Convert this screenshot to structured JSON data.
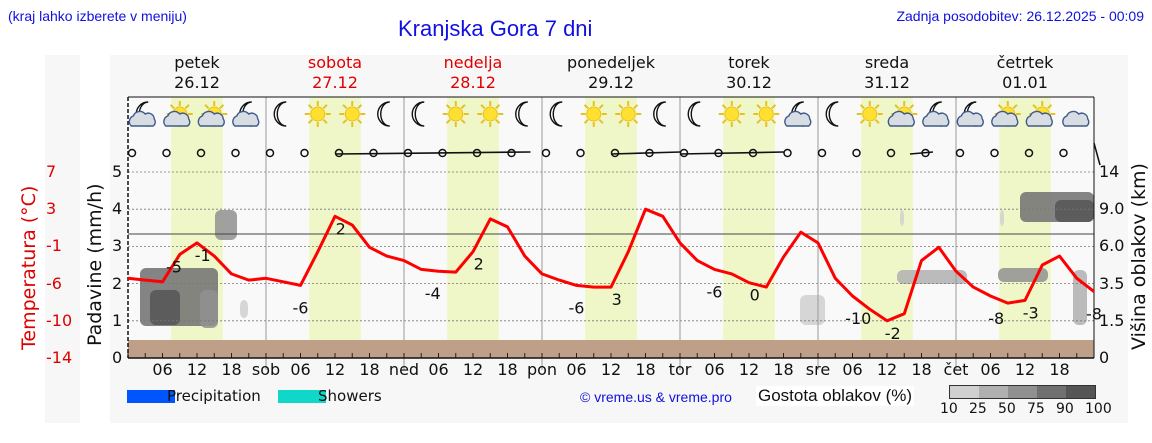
{
  "header": {
    "hint": "(kraj lahko izberete v meniju)",
    "title": "Kranjska Gora 7 dni",
    "updated": "Zadnja posodobitev: 26.12.2025 - 00:09"
  },
  "days": [
    {
      "name": "petek",
      "date": "26.12",
      "weekend": false
    },
    {
      "name": "sobota",
      "date": "27.12",
      "weekend": true
    },
    {
      "name": "nedelja",
      "date": "28.12",
      "weekend": true
    },
    {
      "name": "ponedeljek",
      "date": "29.12",
      "weekend": false
    },
    {
      "name": "torek",
      "date": "30.12",
      "weekend": false
    },
    {
      "name": "sreda",
      "date": "31.12",
      "weekend": false
    },
    {
      "name": "četrtek",
      "date": "01.01",
      "weekend": false
    }
  ],
  "axes": {
    "left_temp_label": "Temperatura (°C)",
    "left_temp_ticks": [
      "7",
      "3",
      "-1",
      "-6",
      "-10",
      "-14"
    ],
    "left_precip_label": "Padavine (mm/h)",
    "left_precip_ticks": [
      "5",
      "4",
      "3",
      "2",
      "1",
      "0"
    ],
    "right_label": "Višina oblakov (km)",
    "right_ticks": [
      "14",
      "9.0",
      "6.0",
      "3.5",
      "1.5",
      "0"
    ],
    "x_ticks": [
      "06",
      "12",
      "18",
      "sob",
      "06",
      "12",
      "18",
      "ned",
      "06",
      "12",
      "18",
      "pon",
      "06",
      "12",
      "18",
      "tor",
      "06",
      "12",
      "18",
      "sre",
      "06",
      "12",
      "18",
      "čet",
      "06",
      "12",
      "18"
    ]
  },
  "legend": {
    "precipitation": {
      "label": "Precipitation",
      "color": "#0055ff"
    },
    "showers": {
      "label": "Showers",
      "color": "#10d8c8"
    },
    "credit": "© vreme.us & vreme.pro",
    "cloud_density_label": "Gostota oblakov (%)",
    "cloud_density_ticks": [
      "10",
      "25",
      "50",
      "75",
      "90",
      "100"
    ],
    "cloud_density_colors": [
      "#d0d0d0",
      "#b0b0b0",
      "#909090",
      "#707070",
      "#555555"
    ]
  },
  "colors": {
    "temperature_line": "#ff0000",
    "daylight_band": "#eff7c8",
    "ground": "#bf9f88",
    "title_blue": "#1010e0",
    "weekend_red": "#e00000"
  },
  "weather_icons": [
    "moon-cloud",
    "sun-cloud",
    "sun-cloud",
    "moon-cloud",
    "moon",
    "sun",
    "sun",
    "moon",
    "moon",
    "sun",
    "sun",
    "moon",
    "moon",
    "sun",
    "sun",
    "moon",
    "moon",
    "sun",
    "sun",
    "moon-cloud",
    "moon",
    "sun",
    "sun-cloud",
    "moon-cloud",
    "moon-cloud",
    "sun-cloud",
    "sun-cloud",
    "cloud"
  ],
  "chart_data": {
    "type": "line",
    "title": "Kranjska Gora 7 dni",
    "xlabel": "",
    "ylabel": "Temperatura (°C) / Padavine (mm/h)",
    "y2label": "Višina oblakov (km)",
    "temp_range": [
      -14,
      7
    ],
    "precip_range": [
      0,
      5
    ],
    "grid": true,
    "series": [
      {
        "name": "Temperatura",
        "hours": [
          0,
          3,
          6,
          9,
          12,
          15,
          18,
          21,
          24,
          27,
          30,
          33,
          36,
          39,
          42,
          45,
          48,
          51,
          54,
          57,
          60,
          63,
          66,
          69,
          72,
          75,
          78,
          81,
          84,
          87,
          90,
          93,
          96,
          99,
          102,
          105,
          108,
          111,
          114,
          117,
          120,
          123,
          126,
          129,
          132,
          135,
          138,
          141,
          144,
          147,
          150,
          153,
          156,
          159,
          162,
          165,
          168
        ],
        "values": [
          -5,
          -5.2,
          -5.4,
          -2.3,
          -1,
          -2.5,
          -4.5,
          -5.2,
          -5,
          -5.4,
          -5.8,
          -2,
          2,
          1,
          -1.5,
          -2.5,
          -3,
          -4,
          -4.2,
          -4.3,
          -2,
          1.7,
          0.8,
          -2.5,
          -4.5,
          -5.2,
          -5.8,
          -6,
          -6,
          -2,
          2.8,
          2,
          -1,
          -3,
          -4,
          -4.5,
          -5.5,
          -6,
          -2.6,
          0.2,
          -1,
          -5,
          -7,
          -8.5,
          -9.8,
          -9,
          -3,
          -1.5,
          -4.2,
          -6,
          -7,
          -7.8,
          -7.5,
          -3.5,
          -2.5,
          -5,
          -6.5
        ],
        "labels": [
          {
            "hour": 8,
            "text": "-5"
          },
          {
            "hour": 13,
            "text": "-1"
          },
          {
            "hour": 30,
            "text": "-6"
          },
          {
            "hour": 37,
            "text": "2"
          },
          {
            "hour": 53,
            "text": "-4"
          },
          {
            "hour": 61,
            "text": "2"
          },
          {
            "hour": 78,
            "text": "-6"
          },
          {
            "hour": 85,
            "text": "3"
          },
          {
            "hour": 102,
            "text": "-6"
          },
          {
            "hour": 109,
            "text": "0"
          },
          {
            "hour": 127,
            "text": "-10"
          },
          {
            "hour": 133,
            "text": "-2"
          },
          {
            "hour": 151,
            "text": "-8"
          },
          {
            "hour": 157,
            "text": "-3"
          },
          {
            "hour": 168,
            "text": "-8"
          }
        ]
      }
    ],
    "precipitation": [],
    "annotations": [
      "daily min/max temperature labels",
      "cloud density shading by altitude"
    ]
  }
}
